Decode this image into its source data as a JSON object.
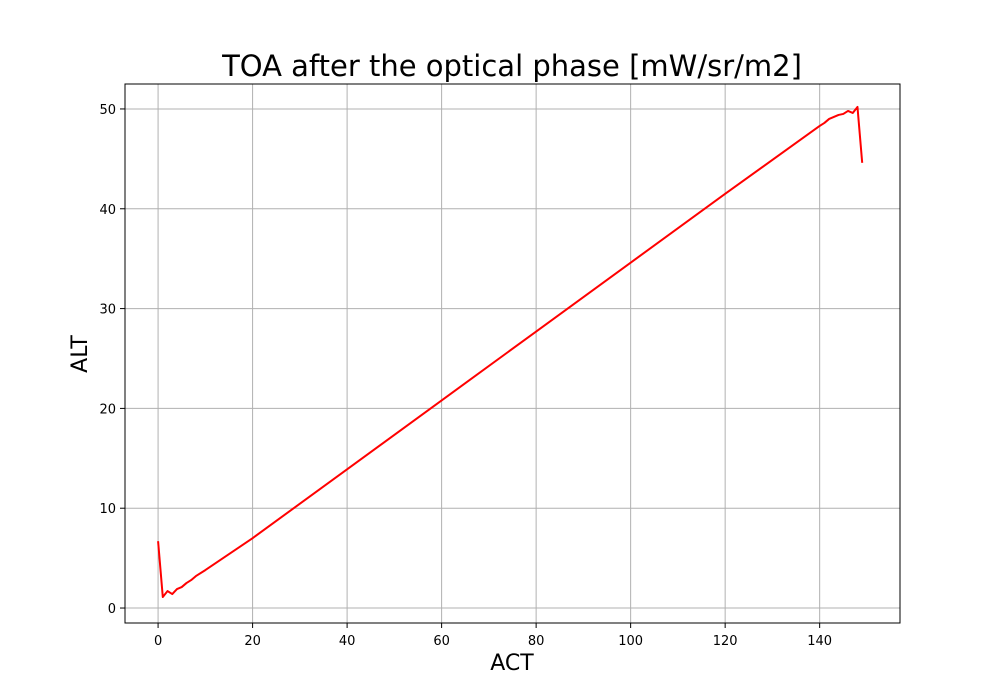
{
  "chart_data": {
    "type": "line",
    "title": "TOA after the optical phase [mW/sr/m2]",
    "xlabel": "ACT",
    "ylabel": "ALT",
    "xlim": [
      -7,
      157
    ],
    "ylim": [
      -1.5,
      52.5
    ],
    "xticks": [
      0,
      20,
      40,
      60,
      80,
      100,
      120,
      140
    ],
    "yticks": [
      0,
      10,
      20,
      30,
      40,
      50
    ],
    "grid": true,
    "series": [
      {
        "color": "#ff0000",
        "x": [
          0,
          1,
          2,
          3,
          4,
          5,
          6,
          7,
          8,
          10,
          20,
          40,
          60,
          80,
          100,
          120,
          140,
          141,
          142,
          143,
          144,
          145,
          146,
          147,
          148,
          149
        ],
        "y": [
          6.7,
          1.1,
          1.7,
          1.4,
          1.9,
          2.1,
          2.5,
          2.8,
          3.2,
          3.8,
          7.0,
          13.9,
          20.8,
          27.7,
          34.6,
          41.5,
          48.3,
          48.6,
          49.0,
          49.2,
          49.4,
          49.5,
          49.8,
          49.6,
          50.2,
          44.6
        ]
      }
    ]
  }
}
